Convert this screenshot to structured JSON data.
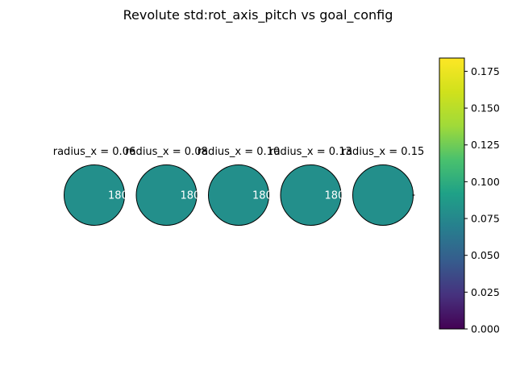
{
  "chart_data": {
    "type": "pie",
    "title": "Revolute std:rot_axis_pitch vs goal_config",
    "panels": [
      {
        "subtitle": "radius_x = 0.06",
        "value": 0.08,
        "label": "180"
      },
      {
        "subtitle": "radius_x = 0.08",
        "value": 0.08,
        "label": "180"
      },
      {
        "subtitle": "radius_x = 0.10",
        "value": 0.08,
        "label": "180"
      },
      {
        "subtitle": "radius_x = 0.13",
        "value": 0.08,
        "label": "180"
      },
      {
        "subtitle": "radius_x = 0.15",
        "value": 0.08,
        "label": ""
      }
    ],
    "colorbar": {
      "colormap": "viridis",
      "range": [
        0.0,
        0.184
      ],
      "ticks": [
        "0.000",
        "0.025",
        "0.050",
        "0.075",
        "0.100",
        "0.125",
        "0.150",
        "0.175"
      ],
      "tick_values": [
        0.0,
        0.025,
        0.05,
        0.075,
        0.1,
        0.125,
        0.15,
        0.175
      ]
    }
  }
}
